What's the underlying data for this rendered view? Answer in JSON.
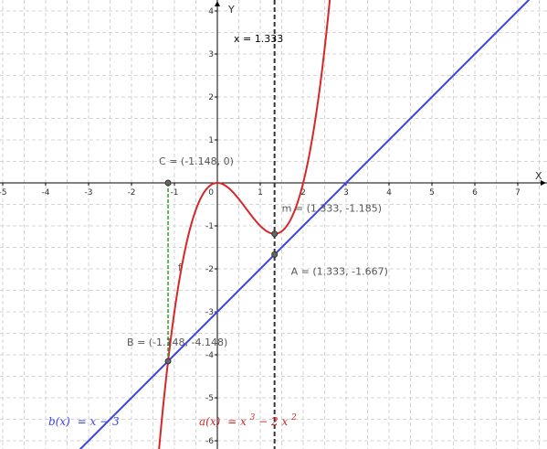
{
  "chart_data": {
    "type": "line",
    "xlim": [
      -5.2,
      7.5
    ],
    "ylim": [
      -6.1,
      4.2
    ],
    "x_ticks": [
      -5,
      -4,
      -3,
      -2,
      -1,
      1,
      2,
      3,
      4,
      5,
      6,
      7
    ],
    "y_ticks": [
      -6,
      -5,
      -4,
      -3,
      -2,
      -1,
      1,
      2,
      3,
      4
    ],
    "x_tick_labels": [
      "-5",
      "-4",
      "-3",
      "-2",
      "-1",
      "1",
      "2",
      "3",
      "4",
      "5",
      "6",
      "7"
    ],
    "y_tick_labels": [
      "-6",
      "-5",
      "-4",
      "-3",
      "-2",
      "-1",
      "1",
      "2",
      "3",
      "4"
    ],
    "origin_label": "0",
    "xlabel": "X",
    "ylabel": "Y",
    "grid": true,
    "curves": [
      {
        "name": "a",
        "expr": "x^3 - 2x^2",
        "coeffs": [
          1,
          -2,
          0,
          0
        ],
        "color": "#d62728",
        "label_html_fn": "a(x)",
        "label_eq": "= x³ − 2 x²"
      },
      {
        "name": "b",
        "expr": "x - 3",
        "coeffs": [
          1,
          -3
        ],
        "color": "#3b44e8",
        "label_fn": "b(x)",
        "label_eq": "= x − 3"
      }
    ],
    "vertical_line": {
      "x": 1.333,
      "label": "x = 1.333",
      "color": "#333333"
    },
    "segment_f": {
      "x": -1.148,
      "y1": 0,
      "y2": -4.148,
      "label": "f",
      "color": "#2ca02c"
    },
    "points": [
      {
        "name": "C",
        "x": -1.148,
        "y": 0,
        "label": "C = (-1.148, 0)"
      },
      {
        "name": "B",
        "x": -1.148,
        "y": -4.148,
        "label": "B = (-1.148, -4.148)"
      },
      {
        "name": "m",
        "x": 1.333,
        "y": -1.185,
        "label": "m = (1.333, -1.185)"
      },
      {
        "name": "A",
        "x": 1.333,
        "y": -1.667,
        "label": "A = (1.333, -1.667)"
      }
    ]
  },
  "legend": {
    "b_fn": "b(x)",
    "b_eq": "= x − 3",
    "a_fn": "a(x)",
    "a_eq_main": "= x",
    "a_exp1": "3",
    "a_eq_mid": " − 2 x",
    "a_exp2": "2"
  },
  "colors": {
    "a": "#d62728",
    "b": "#3b44e8",
    "f": "#2ca02c",
    "vline": "#333333",
    "grid": "#c8c8c8"
  }
}
